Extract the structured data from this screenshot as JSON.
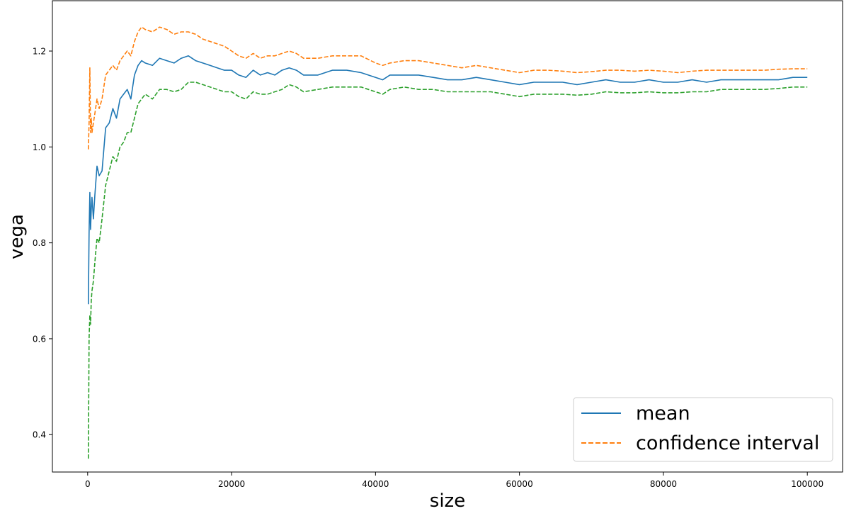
{
  "chart_data": {
    "type": "line",
    "xlabel": "size",
    "ylabel": "vega",
    "xlim": [
      -4900,
      104900
    ],
    "ylim": [
      0.322,
      1.305
    ],
    "xticks": [
      0,
      20000,
      40000,
      60000,
      80000,
      100000
    ],
    "xtick_labels": [
      "0",
      "20000",
      "40000",
      "60000",
      "80000",
      "100000"
    ],
    "yticks": [
      0.4,
      0.6,
      0.8,
      1.0,
      1.2
    ],
    "ytick_labels": [
      "0.4",
      "0.6",
      "0.8",
      "1.0",
      "1.2"
    ],
    "grid": false,
    "legend": {
      "position": "lower-right",
      "entries": [
        {
          "label": "mean",
          "color": "#1f77b4",
          "style": "solid"
        },
        {
          "label": "confidence interval",
          "color": "#ff7f0e",
          "style": "dashed"
        }
      ]
    },
    "series": [
      {
        "name": "mean",
        "color": "#1f77b4",
        "style": "solid",
        "x": [
          100,
          200,
          300,
          400,
          500,
          600,
          800,
          1000,
          1300,
          1600,
          2000,
          2500,
          3000,
          3500,
          4000,
          4500,
          5000,
          5500,
          6000,
          6500,
          7000,
          7500,
          8000,
          9000,
          10000,
          11000,
          12000,
          13000,
          14000,
          15000,
          16000,
          17000,
          18000,
          19000,
          20000,
          21000,
          22000,
          23000,
          24000,
          25000,
          26000,
          27000,
          28000,
          29000,
          30000,
          32000,
          34000,
          36000,
          38000,
          40000,
          41000,
          42000,
          44000,
          46000,
          48000,
          50000,
          52000,
          54000,
          56000,
          58000,
          60000,
          62000,
          64000,
          66000,
          68000,
          70000,
          72000,
          74000,
          76000,
          78000,
          80000,
          82000,
          84000,
          86000,
          88000,
          90000,
          92000,
          94000,
          96000,
          98000,
          100000
        ],
        "y": [
          0.672,
          0.82,
          0.905,
          0.828,
          0.87,
          0.895,
          0.85,
          0.9,
          0.96,
          0.94,
          0.95,
          1.04,
          1.05,
          1.08,
          1.06,
          1.1,
          1.11,
          1.12,
          1.1,
          1.15,
          1.17,
          1.18,
          1.175,
          1.17,
          1.185,
          1.18,
          1.175,
          1.185,
          1.19,
          1.18,
          1.175,
          1.17,
          1.165,
          1.16,
          1.16,
          1.15,
          1.145,
          1.16,
          1.15,
          1.155,
          1.15,
          1.16,
          1.165,
          1.16,
          1.15,
          1.15,
          1.16,
          1.16,
          1.155,
          1.145,
          1.14,
          1.15,
          1.15,
          1.15,
          1.145,
          1.14,
          1.14,
          1.145,
          1.14,
          1.135,
          1.13,
          1.135,
          1.135,
          1.135,
          1.13,
          1.135,
          1.14,
          1.135,
          1.135,
          1.14,
          1.135,
          1.135,
          1.14,
          1.135,
          1.14,
          1.14,
          1.14,
          1.14,
          1.14,
          1.145,
          1.145
        ]
      },
      {
        "name": "confidence interval",
        "color": "#ff7f0e",
        "style": "dashed",
        "x": [
          100,
          200,
          300,
          400,
          500,
          600,
          800,
          1000,
          1300,
          1600,
          2000,
          2500,
          3000,
          3500,
          4000,
          4500,
          5000,
          5500,
          6000,
          6500,
          7000,
          7500,
          8000,
          9000,
          10000,
          11000,
          12000,
          13000,
          14000,
          15000,
          16000,
          17000,
          18000,
          19000,
          20000,
          21000,
          22000,
          23000,
          24000,
          25000,
          26000,
          27000,
          28000,
          29000,
          30000,
          32000,
          34000,
          36000,
          38000,
          40000,
          41000,
          42000,
          44000,
          46000,
          48000,
          50000,
          52000,
          54000,
          56000,
          58000,
          60000,
          62000,
          64000,
          66000,
          68000,
          70000,
          72000,
          74000,
          76000,
          78000,
          80000,
          82000,
          84000,
          86000,
          88000,
          90000,
          92000,
          94000,
          96000,
          98000,
          100000
        ],
        "y": [
          0.995,
          1.05,
          1.165,
          1.03,
          1.06,
          1.03,
          1.05,
          1.07,
          1.1,
          1.08,
          1.1,
          1.15,
          1.16,
          1.17,
          1.16,
          1.18,
          1.19,
          1.2,
          1.19,
          1.22,
          1.24,
          1.25,
          1.245,
          1.24,
          1.25,
          1.245,
          1.235,
          1.24,
          1.24,
          1.235,
          1.225,
          1.22,
          1.215,
          1.21,
          1.2,
          1.19,
          1.185,
          1.195,
          1.185,
          1.19,
          1.19,
          1.195,
          1.2,
          1.195,
          1.185,
          1.185,
          1.19,
          1.19,
          1.19,
          1.175,
          1.17,
          1.175,
          1.18,
          1.18,
          1.175,
          1.17,
          1.165,
          1.17,
          1.165,
          1.16,
          1.155,
          1.16,
          1.16,
          1.158,
          1.155,
          1.157,
          1.16,
          1.16,
          1.158,
          1.16,
          1.158,
          1.155,
          1.158,
          1.16,
          1.16,
          1.16,
          1.16,
          1.16,
          1.162,
          1.163,
          1.163
        ]
      },
      {
        "name": "",
        "color": "#2ca02c",
        "style": "dashed",
        "x": [
          100,
          200,
          300,
          400,
          500,
          600,
          800,
          1000,
          1300,
          1600,
          2000,
          2500,
          3000,
          3500,
          4000,
          4500,
          5000,
          5500,
          6000,
          6500,
          7000,
          7500,
          8000,
          9000,
          10000,
          11000,
          12000,
          13000,
          14000,
          15000,
          16000,
          17000,
          18000,
          19000,
          20000,
          21000,
          22000,
          23000,
          24000,
          25000,
          26000,
          27000,
          28000,
          29000,
          30000,
          32000,
          34000,
          36000,
          38000,
          40000,
          41000,
          42000,
          44000,
          46000,
          48000,
          50000,
          52000,
          54000,
          56000,
          58000,
          60000,
          62000,
          64000,
          66000,
          68000,
          70000,
          72000,
          74000,
          76000,
          78000,
          80000,
          82000,
          84000,
          86000,
          88000,
          90000,
          92000,
          94000,
          96000,
          98000,
          100000
        ],
        "y": [
          0.35,
          0.6,
          0.65,
          0.63,
          0.68,
          0.7,
          0.72,
          0.76,
          0.81,
          0.8,
          0.85,
          0.92,
          0.95,
          0.98,
          0.97,
          1.0,
          1.01,
          1.03,
          1.03,
          1.06,
          1.09,
          1.1,
          1.11,
          1.1,
          1.12,
          1.12,
          1.115,
          1.12,
          1.135,
          1.135,
          1.13,
          1.125,
          1.12,
          1.115,
          1.115,
          1.105,
          1.1,
          1.115,
          1.11,
          1.11,
          1.115,
          1.12,
          1.13,
          1.125,
          1.115,
          1.12,
          1.125,
          1.125,
          1.125,
          1.115,
          1.11,
          1.12,
          1.125,
          1.12,
          1.12,
          1.115,
          1.115,
          1.115,
          1.115,
          1.11,
          1.105,
          1.11,
          1.11,
          1.11,
          1.108,
          1.11,
          1.115,
          1.113,
          1.113,
          1.115,
          1.113,
          1.113,
          1.115,
          1.115,
          1.12,
          1.12,
          1.12,
          1.12,
          1.122,
          1.125,
          1.125
        ]
      }
    ]
  }
}
